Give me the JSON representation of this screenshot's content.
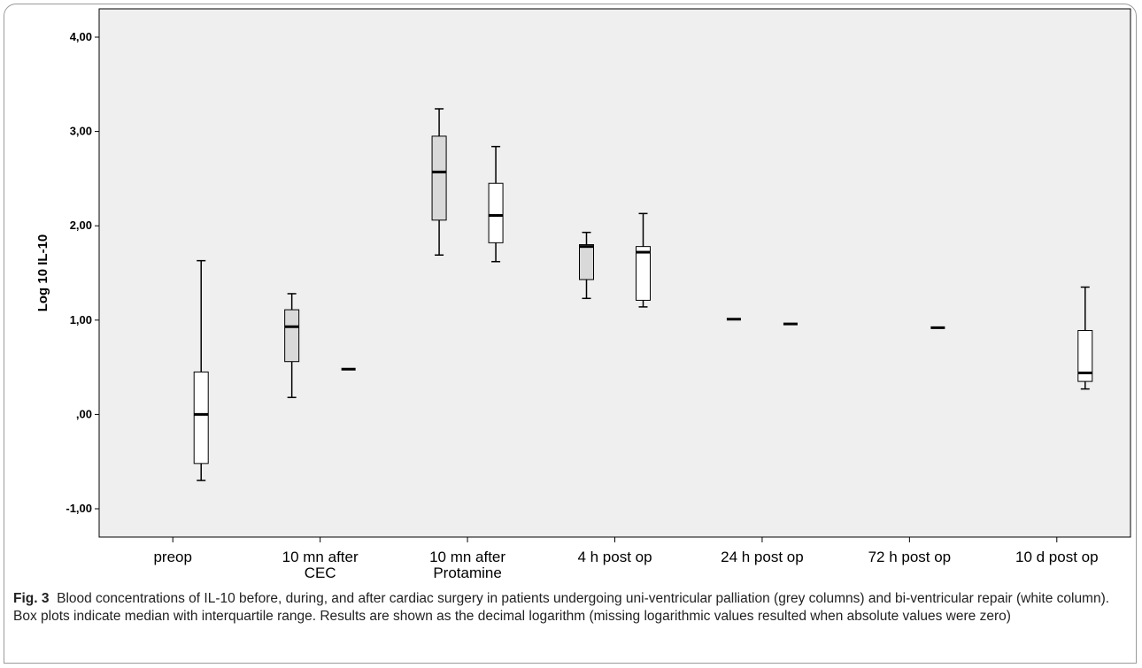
{
  "chart_data": {
    "type": "box",
    "ylabel": "Log 10 IL-10",
    "ylim": [
      -1.3,
      4.3
    ],
    "yticks": [
      {
        "value": 4,
        "label": "4,00"
      },
      {
        "value": 3,
        "label": "3,00"
      },
      {
        "value": 2,
        "label": "2,00"
      },
      {
        "value": 1,
        "label": "1,00"
      },
      {
        "value": 0,
        "label": ",00"
      },
      {
        "value": -1,
        "label": "-1,00"
      }
    ],
    "categories": [
      {
        "lines": [
          "preop"
        ]
      },
      {
        "lines": [
          "10 mn after",
          "CEC"
        ]
      },
      {
        "lines": [
          "10 mn after",
          "Protamine"
        ]
      },
      {
        "lines": [
          "4 h post op"
        ]
      },
      {
        "lines": [
          "24 h post op"
        ]
      },
      {
        "lines": [
          "72 h post op"
        ]
      },
      {
        "lines": [
          "10 d post op"
        ]
      }
    ],
    "series": [
      {
        "fill": "#d9d9d9",
        "boxes": [
          null,
          {
            "min": 0.18,
            "q1": 0.56,
            "median": 0.93,
            "q3": 1.11,
            "max": 1.28
          },
          {
            "min": 1.69,
            "q1": 2.06,
            "median": 2.57,
            "q3": 2.95,
            "max": 3.24
          },
          {
            "min": 1.23,
            "q1": 1.43,
            "median": 1.78,
            "q3": 1.8,
            "max": 1.93
          },
          {
            "min": 1.01,
            "q1": 1.01,
            "median": 1.01,
            "q3": 1.01,
            "max": 1.01
          },
          null,
          null
        ]
      },
      {
        "fill": "#ffffff",
        "boxes": [
          {
            "min": -0.7,
            "q1": -0.52,
            "median": 0.0,
            "q3": 0.45,
            "max": 1.63
          },
          {
            "min": 0.48,
            "q1": 0.48,
            "median": 0.48,
            "q3": 0.48,
            "max": 0.48
          },
          {
            "min": 1.62,
            "q1": 1.82,
            "median": 2.11,
            "q3": 2.45,
            "max": 2.84
          },
          {
            "min": 1.14,
            "q1": 1.21,
            "median": 1.72,
            "q3": 1.78,
            "max": 2.13
          },
          {
            "min": 0.96,
            "q1": 0.96,
            "median": 0.96,
            "q3": 0.96,
            "max": 0.96
          },
          {
            "min": 0.92,
            "q1": 0.92,
            "median": 0.92,
            "q3": 0.92,
            "max": 0.92
          },
          {
            "min": 0.27,
            "q1": 0.35,
            "median": 0.44,
            "q3": 0.89,
            "max": 1.35
          }
        ]
      }
    ]
  },
  "caption": {
    "label": "Fig. 3",
    "text": "Blood concentrations of IL-10 before, during, and after cardiac surgery in patients undergoing uni-ventricular palliation (grey columns) and bi-ventricular repair (white column). Box plots indicate median with interquartile range. Results are shown as the decimal logarithm (missing logarithmic values resulted when absolute values were zero)"
  }
}
